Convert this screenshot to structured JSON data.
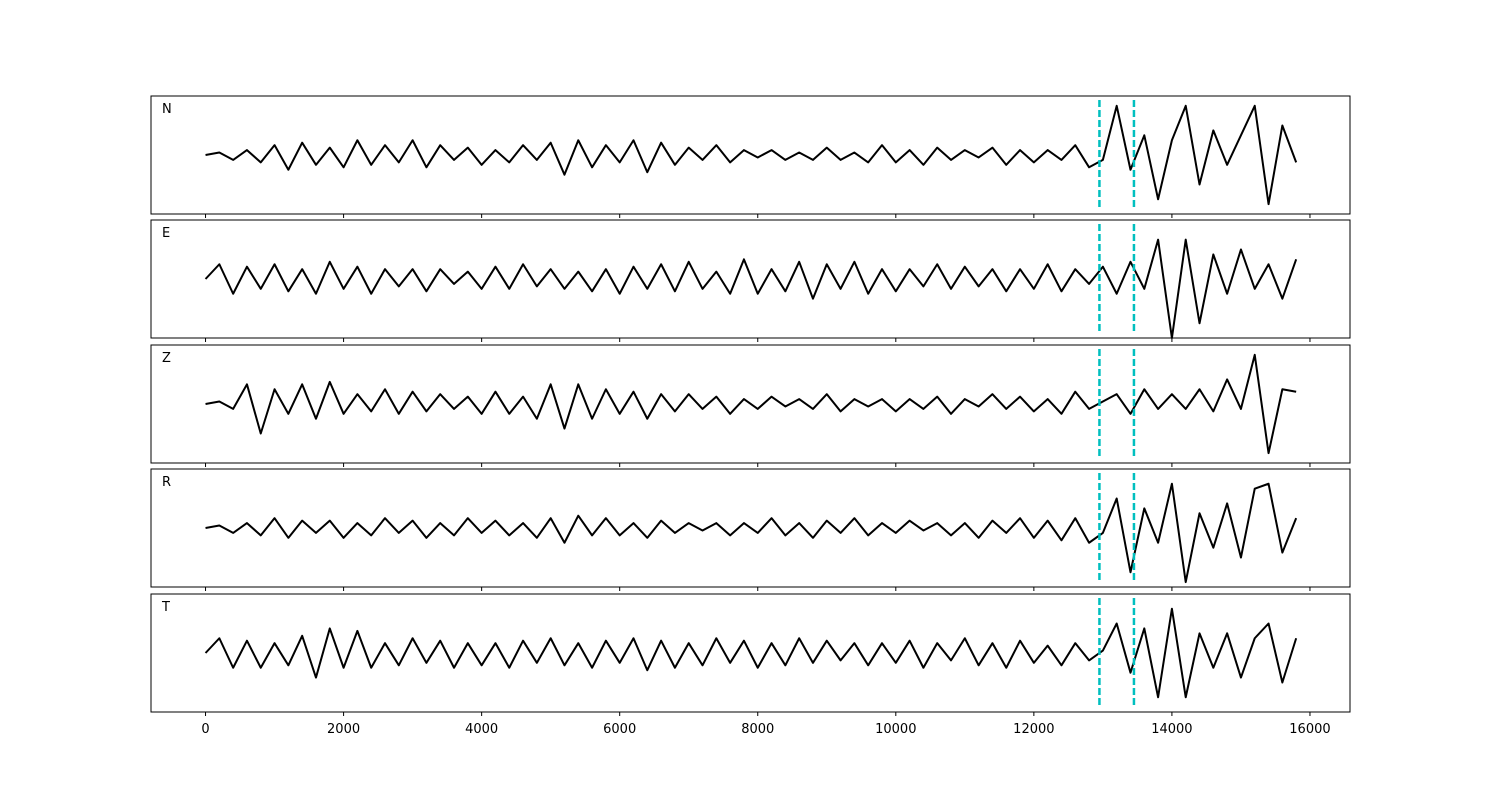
{
  "chart_data": {
    "type": "line",
    "layout": "stacked",
    "x": [
      0,
      200,
      400,
      600,
      800,
      1000,
      1200,
      1400,
      1600,
      1800,
      2000,
      2200,
      2400,
      2600,
      2800,
      3000,
      3200,
      3400,
      3600,
      3800,
      4000,
      4200,
      4400,
      4600,
      4800,
      5000,
      5200,
      5400,
      5600,
      5800,
      6000,
      6200,
      6400,
      6600,
      6800,
      7000,
      7200,
      7400,
      7600,
      7800,
      8000,
      8200,
      8400,
      8600,
      8800,
      9000,
      9200,
      9400,
      9600,
      9800,
      10000,
      10200,
      10400,
      10600,
      10800,
      11000,
      11200,
      11400,
      11600,
      11800,
      12000,
      12200,
      12400,
      12600,
      12800,
      13000,
      13200,
      13400,
      13600,
      13800,
      14000,
      14200,
      14400,
      14600,
      14800,
      15000,
      15200,
      15400,
      15600,
      15800
    ],
    "xlim": [
      -790,
      16580
    ],
    "xticks": [
      0,
      2000,
      4000,
      6000,
      8000,
      10000,
      12000,
      14000,
      16000
    ],
    "ylim": [
      -1.2,
      1.2
    ],
    "vlines": {
      "color": "#00bfbf",
      "values": [
        12950,
        13450
      ]
    },
    "series": [
      {
        "name": "N",
        "color": "#000000",
        "values": [
          0,
          0.05,
          -0.1,
          0.1,
          -0.15,
          0.2,
          -0.3,
          0.25,
          -0.2,
          0.15,
          -0.25,
          0.3,
          -0.2,
          0.2,
          -0.15,
          0.3,
          -0.25,
          0.2,
          -0.1,
          0.15,
          -0.2,
          0.1,
          -0.15,
          0.2,
          -0.1,
          0.25,
          -0.4,
          0.3,
          -0.25,
          0.2,
          -0.15,
          0.3,
          -0.35,
          0.25,
          -0.2,
          0.15,
          -0.1,
          0.2,
          -0.15,
          0.1,
          -0.05,
          0.1,
          -0.1,
          0.05,
          -0.1,
          0.15,
          -0.1,
          0.05,
          -0.15,
          0.2,
          -0.15,
          0.1,
          -0.2,
          0.15,
          -0.1,
          0.1,
          -0.05,
          0.15,
          -0.2,
          0.1,
          -0.15,
          0.1,
          -0.1,
          0.2,
          -0.25,
          -0.1,
          1.0,
          -0.3,
          0.4,
          -0.9,
          0.3,
          1.0,
          -0.6,
          0.5,
          -0.2,
          0.4,
          1.0,
          -1.0,
          0.6,
          -0.15
        ]
      },
      {
        "name": "E",
        "color": "#000000",
        "values": [
          0,
          0.3,
          -0.3,
          0.25,
          -0.2,
          0.3,
          -0.25,
          0.2,
          -0.3,
          0.35,
          -0.2,
          0.25,
          -0.3,
          0.2,
          -0.15,
          0.2,
          -0.25,
          0.2,
          -0.1,
          0.15,
          -0.2,
          0.25,
          -0.2,
          0.3,
          -0.15,
          0.2,
          -0.2,
          0.15,
          -0.25,
          0.2,
          -0.3,
          0.25,
          -0.2,
          0.3,
          -0.25,
          0.35,
          -0.2,
          0.15,
          -0.3,
          0.4,
          -0.3,
          0.2,
          -0.25,
          0.35,
          -0.4,
          0.3,
          -0.2,
          0.35,
          -0.3,
          0.2,
          -0.25,
          0.2,
          -0.15,
          0.3,
          -0.2,
          0.25,
          -0.15,
          0.2,
          -0.25,
          0.2,
          -0.2,
          0.3,
          -0.25,
          0.2,
          -0.1,
          0.25,
          -0.3,
          0.35,
          -0.2,
          0.8,
          -1.2,
          0.8,
          -0.9,
          0.5,
          -0.3,
          0.6,
          -0.2,
          0.3,
          -0.4,
          0.4
        ]
      },
      {
        "name": "Z",
        "color": "#000000",
        "values": [
          0,
          0.05,
          -0.1,
          0.4,
          -0.6,
          0.3,
          -0.2,
          0.4,
          -0.3,
          0.45,
          -0.2,
          0.2,
          -0.15,
          0.3,
          -0.2,
          0.25,
          -0.15,
          0.2,
          -0.1,
          0.15,
          -0.2,
          0.25,
          -0.2,
          0.15,
          -0.3,
          0.4,
          -0.5,
          0.4,
          -0.3,
          0.3,
          -0.2,
          0.25,
          -0.3,
          0.2,
          -0.15,
          0.2,
          -0.1,
          0.15,
          -0.2,
          0.1,
          -0.1,
          0.15,
          -0.05,
          0.1,
          -0.1,
          0.2,
          -0.15,
          0.1,
          -0.05,
          0.1,
          -0.15,
          0.1,
          -0.1,
          0.15,
          -0.2,
          0.1,
          -0.05,
          0.2,
          -0.1,
          0.15,
          -0.15,
          0.1,
          -0.2,
          0.25,
          -0.1,
          0.05,
          0.2,
          -0.2,
          0.3,
          -0.1,
          0.2,
          -0.1,
          0.3,
          -0.15,
          0.5,
          -0.1,
          1.0,
          -1.0,
          0.3,
          0.25
        ]
      },
      {
        "name": "R",
        "color": "#000000",
        "values": [
          0,
          0.05,
          -0.1,
          0.1,
          -0.15,
          0.2,
          -0.2,
          0.15,
          -0.1,
          0.15,
          -0.2,
          0.1,
          -0.15,
          0.2,
          -0.1,
          0.15,
          -0.2,
          0.1,
          -0.15,
          0.2,
          -0.1,
          0.15,
          -0.15,
          0.1,
          -0.2,
          0.2,
          -0.3,
          0.25,
          -0.15,
          0.2,
          -0.15,
          0.1,
          -0.2,
          0.15,
          -0.1,
          0.1,
          -0.05,
          0.1,
          -0.15,
          0.1,
          -0.1,
          0.2,
          -0.15,
          0.1,
          -0.2,
          0.15,
          -0.1,
          0.2,
          -0.15,
          0.1,
          -0.1,
          0.15,
          -0.05,
          0.1,
          -0.15,
          0.1,
          -0.2,
          0.15,
          -0.1,
          0.2,
          -0.2,
          0.15,
          -0.25,
          0.2,
          -0.3,
          -0.1,
          0.6,
          -0.9,
          0.4,
          -0.3,
          0.9,
          -1.1,
          0.3,
          -0.4,
          0.5,
          -0.6,
          0.8,
          0.9,
          -0.5,
          0.2
        ]
      },
      {
        "name": "T",
        "color": "#000000",
        "values": [
          0,
          0.3,
          -0.3,
          0.25,
          -0.3,
          0.2,
          -0.25,
          0.35,
          -0.5,
          0.5,
          -0.3,
          0.45,
          -0.3,
          0.2,
          -0.25,
          0.3,
          -0.2,
          0.25,
          -0.3,
          0.2,
          -0.25,
          0.2,
          -0.3,
          0.25,
          -0.2,
          0.3,
          -0.25,
          0.2,
          -0.3,
          0.25,
          -0.2,
          0.3,
          -0.35,
          0.25,
          -0.3,
          0.2,
          -0.25,
          0.3,
          -0.2,
          0.25,
          -0.3,
          0.2,
          -0.25,
          0.3,
          -0.2,
          0.25,
          -0.15,
          0.2,
          -0.25,
          0.2,
          -0.2,
          0.25,
          -0.3,
          0.2,
          -0.15,
          0.3,
          -0.25,
          0.2,
          -0.3,
          0.25,
          -0.2,
          0.15,
          -0.25,
          0.2,
          -0.15,
          0.05,
          0.6,
          -0.4,
          0.5,
          -0.9,
          0.9,
          -0.9,
          0.4,
          -0.3,
          0.4,
          -0.5,
          0.3,
          0.6,
          -0.6,
          0.3
        ]
      }
    ]
  }
}
